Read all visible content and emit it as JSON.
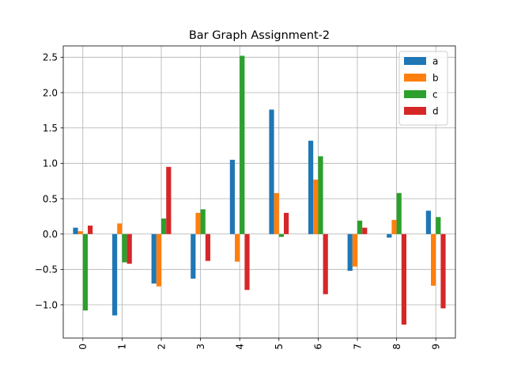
{
  "chart_data": {
    "type": "bar",
    "title": "Bar Graph Assignment-2",
    "xlabel": "",
    "ylabel": "",
    "categories": [
      "0",
      "1",
      "2",
      "3",
      "4",
      "5",
      "6",
      "7",
      "8",
      "9"
    ],
    "series": [
      {
        "name": "a",
        "color": "#1f77b4",
        "values": [
          0.09,
          -1.15,
          -0.7,
          -0.63,
          1.05,
          1.76,
          1.32,
          -0.52,
          -0.05,
          0.33
        ]
      },
      {
        "name": "b",
        "color": "#ff7f0e",
        "values": [
          0.04,
          0.15,
          -0.74,
          0.3,
          -0.39,
          0.58,
          0.77,
          -0.46,
          0.2,
          -0.73
        ]
      },
      {
        "name": "c",
        "color": "#2ca02c",
        "values": [
          -1.08,
          -0.4,
          0.22,
          0.35,
          2.52,
          -0.04,
          1.1,
          0.19,
          0.58,
          0.24
        ]
      },
      {
        "name": "d",
        "color": "#d62728",
        "values": [
          0.12,
          -0.42,
          0.95,
          -0.38,
          -0.79,
          0.3,
          -0.85,
          0.09,
          -1.28,
          -1.05
        ]
      }
    ],
    "ylim": [
      -1.47,
      2.66
    ],
    "yticks": [
      "−1.0",
      "−0.5",
      "0.0",
      "0.5",
      "1.0",
      "1.5",
      "2.0",
      "2.5"
    ],
    "ytick_values": [
      -1.0,
      -0.5,
      0.0,
      0.5,
      1.0,
      1.5,
      2.0,
      2.5
    ],
    "grid": true,
    "legend_position": "upper-right",
    "xtick_rotation": "vertical"
  }
}
